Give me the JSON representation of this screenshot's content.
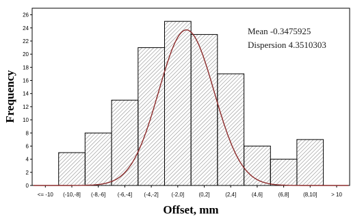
{
  "chart_data": {
    "type": "bar",
    "title": "",
    "xlabel": "Offset, mm",
    "ylabel": "Frequency",
    "ylim": [
      0,
      27
    ],
    "yticks": [
      0,
      2,
      4,
      6,
      8,
      10,
      12,
      14,
      16,
      18,
      20,
      22,
      24,
      26
    ],
    "categories": [
      "<= -10",
      "(-10,-8]",
      "(-8,-6]",
      "(-6,-4]",
      "(-4,-2]",
      "(-2,0]",
      "(0,2]",
      "(2,4]",
      "(4,6]",
      "(6,8]",
      "(8,10]",
      "> 10"
    ],
    "values": [
      0,
      5,
      8,
      13,
      21,
      25,
      23,
      17,
      6,
      4,
      7,
      0
    ],
    "annotations": [
      "Mean  -0.3475925",
      "Dispersion 4.3510303"
    ],
    "fit_curve": {
      "type": "normal",
      "mean": -0.3475925,
      "dispersion": 4.3510303,
      "peak": 23.7
    },
    "grid": false,
    "colors": {
      "bar_fill": "#ffffff",
      "bar_hatch": "#7a7a7a",
      "bar_edge": "#000000",
      "curve": "#8b2a2a"
    }
  }
}
